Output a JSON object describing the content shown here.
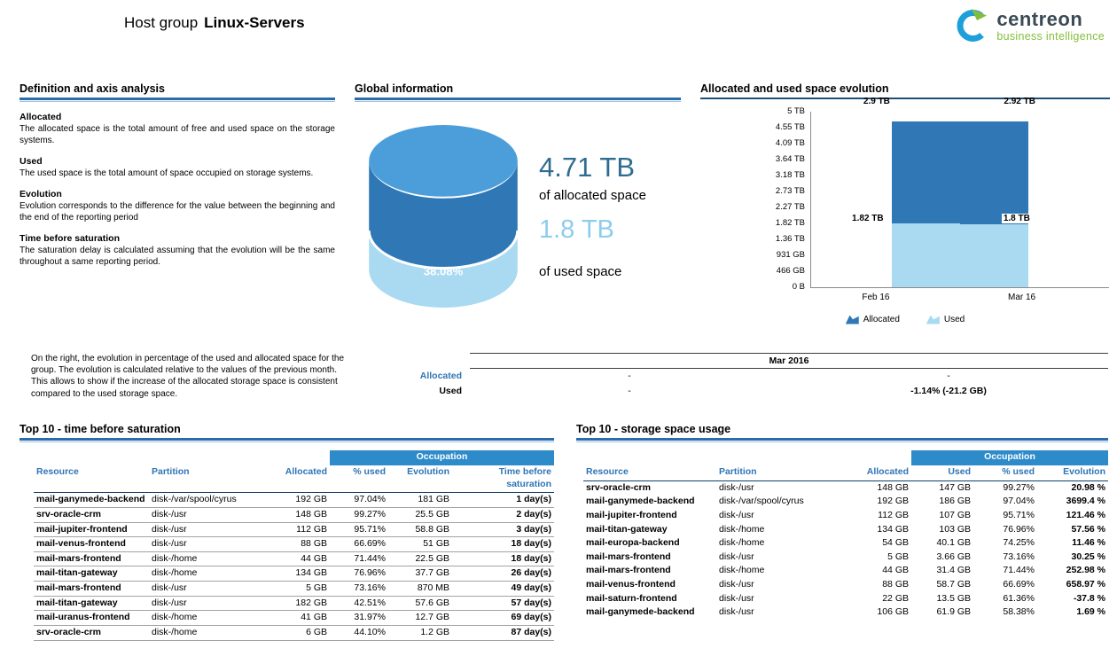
{
  "header": {
    "title_prefix": "Host group",
    "title_bold": "Linux-Servers",
    "logo": {
      "name": "centreon",
      "tagline": "business intelligence",
      "brand_blue": "#1d9fd9",
      "brand_green": "#84bd3b"
    }
  },
  "colors": {
    "heading_rule_blue": "#2a6da9",
    "column_header_blue": "#2e75b6",
    "occupation_bar_blue": "#2e8bc9",
    "allocated_dark_blue": "#2f78b5",
    "used_light_blue": "#a9daf2",
    "big_allocated_text": "#2e6d91",
    "big_used_text": "#8ccdec"
  },
  "definitions": {
    "heading": "Definition and axis analysis",
    "items": [
      {
        "term": "Allocated",
        "text": "The allocated space is the total amount of free and used space on the storage systems."
      },
      {
        "term": "Used",
        "text": "The used space is the total amount of space occupied on storage systems."
      },
      {
        "term": "Evolution",
        "text": "Evolution corresponds to the difference for the value between the beginning and the end of the reporting period"
      },
      {
        "term": "Time before saturation",
        "text": "The saturation delay is calculated assuming that the evolution will be the same throughout a same reporting period."
      }
    ]
  },
  "global_info": {
    "heading": "Global information",
    "gauge_percent": "38.08%",
    "allocated_value": "4.71 TB",
    "allocated_label": "of allocated space",
    "used_value": "1.8 TB",
    "used_label": "of used space"
  },
  "evolution_note": "On the right, the evolution in percentage of the used and allocated space for the group. The evolution is calculated relative to the values of the previous month. This allows to show if the increase of the allocated storage space is consistent compared to the used storage space.",
  "monthly_table": {
    "month": "Mar 2016",
    "rows": [
      {
        "label": "Allocated",
        "col1": "-",
        "col2": "-"
      },
      {
        "label": "Used",
        "col1": "-",
        "col2": "-1.14% (-21.2 GB)"
      }
    ]
  },
  "chart_data": {
    "type": "bar",
    "stacked": true,
    "title": "Allocated and used space evolution",
    "categories": [
      "Feb 16",
      "Mar 16"
    ],
    "series": [
      {
        "name": "Allocated",
        "color": "#2f78b5",
        "values_tb": [
          2.9,
          2.92
        ],
        "labels": [
          "2.9 TB",
          "2.92 TB"
        ]
      },
      {
        "name": "Used",
        "color": "#a9daf2",
        "values_tb": [
          1.82,
          1.8
        ],
        "labels": [
          "1.82 TB",
          "1.8 TB"
        ]
      }
    ],
    "y_ticks": [
      "5 TB",
      "4.55 TB",
      "4.09 TB",
      "3.64 TB",
      "3.18 TB",
      "2.73 TB",
      "2.27 TB",
      "1.82 TB",
      "1.36 TB",
      "931 GB",
      "466 GB",
      "0 B"
    ],
    "ylim_tb": [
      0,
      5
    ],
    "xlabel": "",
    "ylabel": "",
    "gridlines": false,
    "legend_position": "bottom"
  },
  "saturation_table": {
    "heading": "Top 10 - time before saturation",
    "occupation_label": "Occupation",
    "columns": [
      "Resource",
      "Partition",
      "Allocated",
      "% used",
      "Evolution",
      "Time before saturation"
    ],
    "rows": [
      {
        "resource": "mail-ganymede-backend",
        "partition": "disk-/var/spool/cyrus",
        "allocated": "192 GB",
        "used_pct": "97.04%",
        "evolution": "181 GB",
        "saturation": "1 day(s)"
      },
      {
        "resource": "srv-oracle-crm",
        "partition": "disk-/usr",
        "allocated": "148 GB",
        "used_pct": "99.27%",
        "evolution": "25.5 GB",
        "saturation": "2 day(s)"
      },
      {
        "resource": "mail-jupiter-frontend",
        "partition": "disk-/usr",
        "allocated": "112 GB",
        "used_pct": "95.71%",
        "evolution": "58.8 GB",
        "saturation": "3 day(s)"
      },
      {
        "resource": "mail-venus-frontend",
        "partition": "disk-/usr",
        "allocated": "88 GB",
        "used_pct": "66.69%",
        "evolution": "51 GB",
        "saturation": "18 day(s)"
      },
      {
        "resource": "mail-mars-frontend",
        "partition": "disk-/home",
        "allocated": "44 GB",
        "used_pct": "71.44%",
        "evolution": "22.5 GB",
        "saturation": "18 day(s)"
      },
      {
        "resource": "mail-titan-gateway",
        "partition": "disk-/home",
        "allocated": "134 GB",
        "used_pct": "76.96%",
        "evolution": "37.7 GB",
        "saturation": "26 day(s)"
      },
      {
        "resource": "mail-mars-frontend",
        "partition": "disk-/usr",
        "allocated": "5 GB",
        "used_pct": "73.16%",
        "evolution": "870 MB",
        "saturation": "49 day(s)"
      },
      {
        "resource": "mail-titan-gateway",
        "partition": "disk-/usr",
        "allocated": "182 GB",
        "used_pct": "42.51%",
        "evolution": "57.6 GB",
        "saturation": "57 day(s)"
      },
      {
        "resource": "mail-uranus-frontend",
        "partition": "disk-/home",
        "allocated": "41 GB",
        "used_pct": "31.97%",
        "evolution": "12.7 GB",
        "saturation": "69 day(s)"
      },
      {
        "resource": "srv-oracle-crm",
        "partition": "disk-/home",
        "allocated": "6 GB",
        "used_pct": "44.10%",
        "evolution": "1.2 GB",
        "saturation": "87 day(s)"
      }
    ]
  },
  "usage_table": {
    "heading": "Top 10 - storage space usage",
    "occupation_label": "Occupation",
    "columns": [
      "Resource",
      "Partition",
      "Allocated",
      "Used",
      "% used",
      "Evolution"
    ],
    "rows": [
      {
        "resource": "srv-oracle-crm",
        "partition": "disk-/usr",
        "allocated": "148 GB",
        "used": "147 GB",
        "used_pct": "99.27%",
        "evolution": "20.98 %"
      },
      {
        "resource": "mail-ganymede-backend",
        "partition": "disk-/var/spool/cyrus",
        "allocated": "192 GB",
        "used": "186 GB",
        "used_pct": "97.04%",
        "evolution": "3699.4 %"
      },
      {
        "resource": "mail-jupiter-frontend",
        "partition": "disk-/usr",
        "allocated": "112 GB",
        "used": "107 GB",
        "used_pct": "95.71%",
        "evolution": "121.46 %"
      },
      {
        "resource": "mail-titan-gateway",
        "partition": "disk-/home",
        "allocated": "134 GB",
        "used": "103 GB",
        "used_pct": "76.96%",
        "evolution": "57.56 %"
      },
      {
        "resource": "mail-europa-backend",
        "partition": "disk-/home",
        "allocated": "54 GB",
        "used": "40.1 GB",
        "used_pct": "74.25%",
        "evolution": "11.46 %"
      },
      {
        "resource": "mail-mars-frontend",
        "partition": "disk-/usr",
        "allocated": "5 GB",
        "used": "3.66 GB",
        "used_pct": "73.16%",
        "evolution": "30.25 %"
      },
      {
        "resource": "mail-mars-frontend",
        "partition": "disk-/home",
        "allocated": "44 GB",
        "used": "31.4 GB",
        "used_pct": "71.44%",
        "evolution": "252.98 %"
      },
      {
        "resource": "mail-venus-frontend",
        "partition": "disk-/usr",
        "allocated": "88 GB",
        "used": "58.7 GB",
        "used_pct": "66.69%",
        "evolution": "658.97 %"
      },
      {
        "resource": "mail-saturn-frontend",
        "partition": "disk-/usr",
        "allocated": "22 GB",
        "used": "13.5 GB",
        "used_pct": "61.36%",
        "evolution": "-37.8 %"
      },
      {
        "resource": "mail-ganymede-backend",
        "partition": "disk-/usr",
        "allocated": "106 GB",
        "used": "61.9 GB",
        "used_pct": "58.38%",
        "evolution": "1.69 %"
      }
    ]
  }
}
